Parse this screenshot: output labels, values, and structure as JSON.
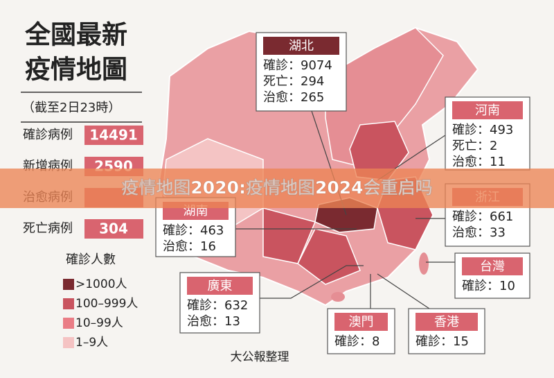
{
  "title": [
    "全國最新",
    "疫情地圖"
  ],
  "subtitle": "（截至2日23時）",
  "stats": [
    {
      "label": "確診病例",
      "value": 14491
    },
    {
      "label": "新增病例",
      "value": 2590
    },
    {
      "label": "治愈病例"
    },
    {
      "label": "死亡病例",
      "value": 304
    }
  ],
  "legend": {
    "title": "確診人數",
    "items": [
      ">1000人",
      "100–999人",
      "10–99人",
      "1–9人"
    ]
  },
  "callouts": [
    {
      "name": "湖北",
      "lines": [
        "確診：9074",
        "死亡：294",
        "治愈：265"
      ]
    },
    {
      "name": "河南",
      "lines": [
        "確診：493",
        "死亡：2",
        "治愈：11"
      ]
    },
    {
      "name": "浙江",
      "lines": [
        "確診：661",
        "治愈：33"
      ]
    },
    {
      "name": "湖南",
      "lines": [
        "確診：463",
        "治愈：16"
      ]
    },
    {
      "name": "台灣",
      "lines": [
        "確診：10"
      ]
    },
    {
      "name": "廣東",
      "lines": [
        "確診：632",
        "治愈：13"
      ]
    },
    {
      "name": "澳門",
      "lines": [
        "確診：8"
      ]
    },
    {
      "name": "香港",
      "lines": [
        "確診：15"
      ]
    }
  ],
  "source": "大公報整理",
  "banner": "疫情地图2020:疫情地图2024会重启吗"
}
